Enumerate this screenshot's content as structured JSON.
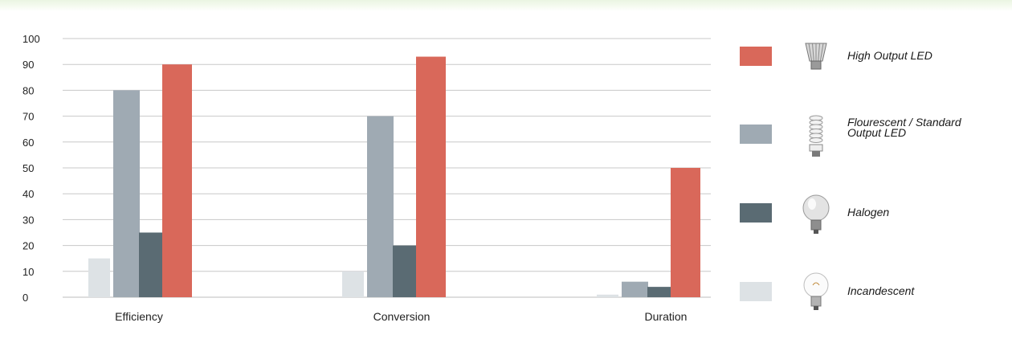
{
  "chart_data": {
    "type": "bar",
    "categories": [
      "Efficiency",
      "Conversion",
      "Duration"
    ],
    "series": [
      {
        "name": "Incandescent",
        "color": "#dde2e5",
        "values": [
          15,
          10,
          1
        ]
      },
      {
        "name": "Flourescent / Standard Output LED",
        "color": "#9faab3",
        "values": [
          80,
          70,
          6
        ]
      },
      {
        "name": "Halogen",
        "color": "#5a6b73",
        "values": [
          25,
          20,
          4
        ]
      },
      {
        "name": "High Output LED",
        "color": "#d9685a",
        "values": [
          90,
          93,
          50
        ]
      }
    ],
    "ylim": [
      0,
      100
    ],
    "yticks": [
      "100",
      "90",
      "80",
      "70",
      "60",
      "50",
      "40",
      "30",
      "20",
      "10",
      "0"
    ],
    "grid": true,
    "legend_position": "right",
    "legend_order": [
      "High Output LED",
      "Flourescent / Standard Output LED",
      "Halogen",
      "Incandescent"
    ],
    "legend_icons": [
      "led-bulb-icon",
      "cfl-bulb-icon",
      "halogen-bulb-icon",
      "incandescent-bulb-icon"
    ]
  }
}
